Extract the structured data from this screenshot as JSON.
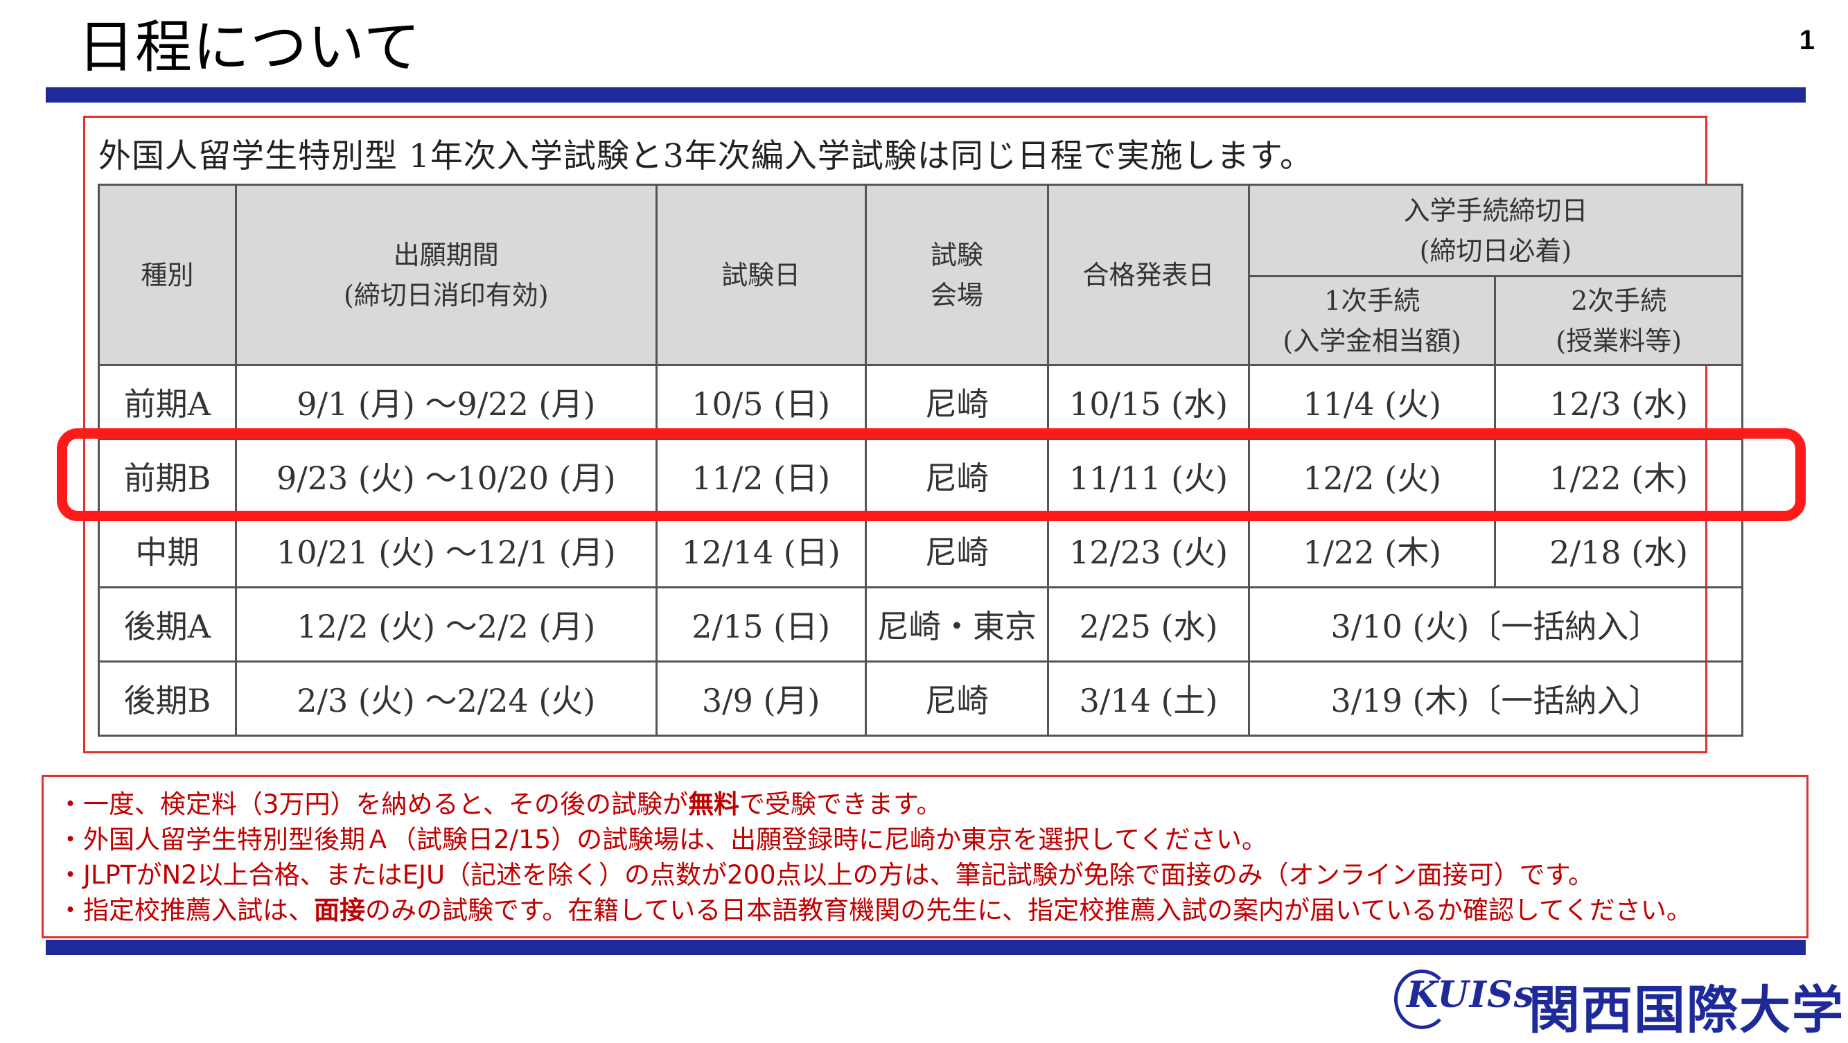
{
  "header": {
    "title": "日程について",
    "page_number": "1"
  },
  "table": {
    "intro": "外国人留学生特別型 1年次入学試験と3年次編入学試験は同じ日程で実施します。",
    "headers": {
      "type": "種別",
      "application_period_line1": "出願期間",
      "application_period_line2": "(締切日消印有効)",
      "exam_date": "試験日",
      "venue_line1": "試験",
      "venue_line2": "会場",
      "result_date": "合格発表日",
      "procedure_line1": "入学手続締切日",
      "procedure_line2": "(締切日必着)",
      "first_line1": "1次手続",
      "first_line2": "(入学金相当額)",
      "second_line1": "2次手続",
      "second_line2": "(授業料等)"
    },
    "rows": [
      {
        "type": "前期A",
        "period": "9/1 (月) ～9/22 (月)",
        "exam": "10/5 (日)",
        "venue": "尼崎",
        "result": "10/15 (水)",
        "first": "11/4 (火)",
        "second": "12/3 (水)"
      },
      {
        "type": "前期B",
        "period": "9/23 (火) ～10/20 (月)",
        "exam": "11/2 (日)",
        "venue": "尼崎",
        "result": "11/11 (火)",
        "first": "12/2 (火)",
        "second": "1/22 (木)"
      },
      {
        "type": "中期",
        "period": "10/21 (火) ～12/1 (月)",
        "exam": "12/14 (日)",
        "venue": "尼崎",
        "result": "12/23 (火)",
        "first": "1/22 (木)",
        "second": "2/18 (水)"
      },
      {
        "type": "後期A",
        "period": "12/2 (火) ～2/2 (月)",
        "exam": "2/15 (日)",
        "venue": "尼崎・東京",
        "result": "2/25 (水)",
        "combined": "3/10 (火)〔一括納入〕"
      },
      {
        "type": "後期B",
        "period": "2/3 (火) ～2/24 (火)",
        "exam": "3/9 (月)",
        "venue": "尼崎",
        "result": "3/14 (土)",
        "combined": "3/19 (木)〔一括納入〕"
      }
    ]
  },
  "notes": {
    "line1_pre": "・一度、検定料（3万円）を納めると、その後の試験が",
    "line1_bold": "無料",
    "line1_post": "で受験できます。",
    "line2": "・外国人留学生特別型後期Ａ（試験日2/15）の試験場は、出願登録時に尼崎か東京を選択してください。",
    "line3": "・JLPTがN2以上合格、またはEJU（記述を除く）の点数が200点以上の方は、筆記試験が免除で面接のみ（オンライン面接可）です。",
    "line4_pre": "・指定校推薦入試は、",
    "line4_bold": "面接",
    "line4_post": "のみの試験です。在籍している日本語教育機関の先生に、指定校推薦入試の案内が届いているか確認してください。"
  },
  "logo": {
    "mark": "KUISs",
    "name": "関西国際大学"
  },
  "colors": {
    "navy": "#1f2a9a",
    "highlight_red": "#ff1a1a",
    "note_red": "#c00000",
    "header_gray": "#d9d9d9"
  }
}
